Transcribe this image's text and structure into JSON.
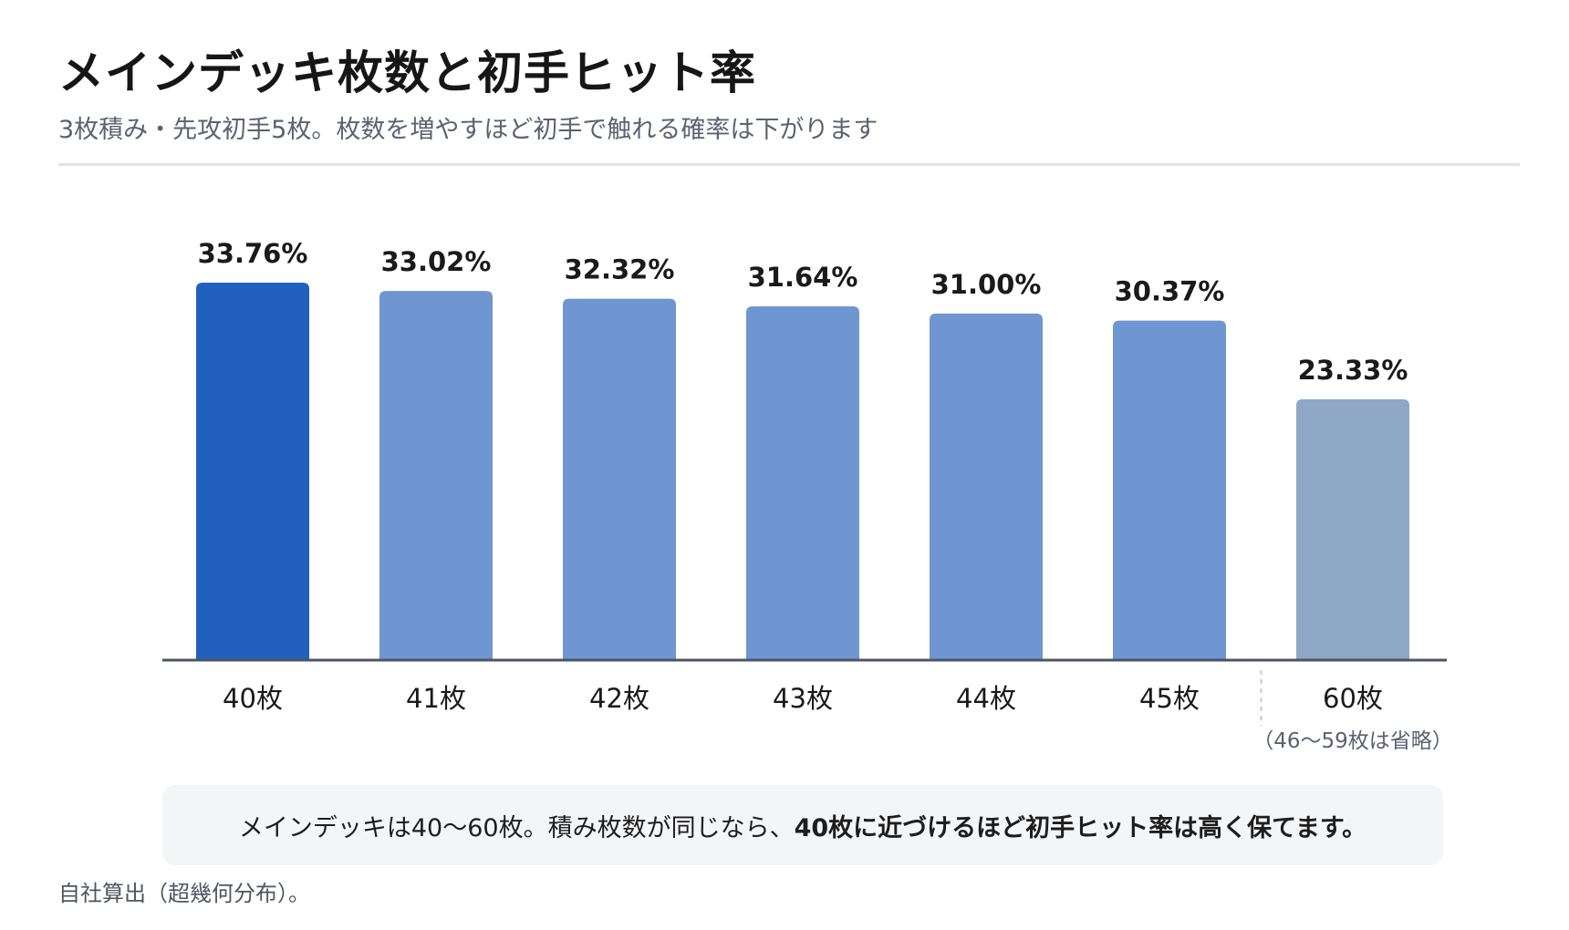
{
  "header": {
    "title": "メインデッキ枚数と初手ヒット率",
    "subtitle": "3枚積み・先攻初手5枚。枚数を増やすほど初手で触れる確率は下がります"
  },
  "chart_data": {
    "type": "bar",
    "categories": [
      "40枚",
      "41枚",
      "42枚",
      "43枚",
      "44枚",
      "45枚",
      "60枚"
    ],
    "values": [
      33.76,
      33.02,
      32.32,
      31.64,
      31.0,
      30.37,
      23.33
    ],
    "value_labels": [
      "33.76%",
      "33.02%",
      "32.32%",
      "31.64%",
      "31.00%",
      "30.37%",
      "23.33%"
    ],
    "bar_colors": [
      "#2260c0",
      "#6f96d0",
      "#6f96d0",
      "#6f96d0",
      "#6f96d0",
      "#6f96d0",
      "#8ea7c6"
    ],
    "annotation": "（46〜59枚は省略）",
    "xlabel": "",
    "ylabel": "",
    "ylim": [
      0,
      33.76
    ],
    "grid": false,
    "legend": "none"
  },
  "note": {
    "text_plain": "メインデッキは40〜60枚。積み枚数が同じなら、",
    "text_strong": "40枚に近づけるほど初手ヒット率は高く保てます。"
  },
  "footer": {
    "source": "自社算出（超幾何分布）。"
  },
  "colors": {
    "highlight_bar": "#2260c0",
    "normal_bar": "#6f96d0",
    "omitted_bar": "#8ea7c6",
    "axis": "#4b5565",
    "title_text": "#161616",
    "subtitle_text": "#5b6270"
  }
}
